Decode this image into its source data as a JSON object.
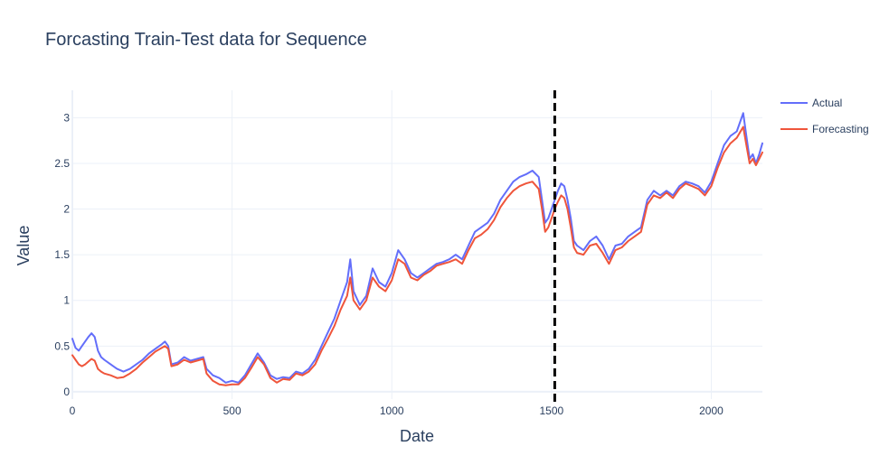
{
  "chart_data": {
    "type": "line",
    "title": "Forcasting Train-Test data for Sequence",
    "xlabel": "Date",
    "ylabel": "Value",
    "xlim": [
      0,
      2160
    ],
    "ylim": [
      -0.08,
      3.3
    ],
    "x_ticks": [
      0,
      500,
      1000,
      1500,
      2000
    ],
    "x_tick_labels": [
      "0",
      "500",
      "1000",
      "1500",
      "2000"
    ],
    "y_ticks": [
      0,
      0.5,
      1,
      1.5,
      2,
      2.5,
      3
    ],
    "y_tick_labels": [
      "0",
      "0.5",
      "1",
      "1.5",
      "2",
      "2.5",
      "3"
    ],
    "grid": true,
    "legend_position": "top-right",
    "split_line": {
      "x": 1510,
      "style": "dashed",
      "color": "#000000"
    },
    "series": [
      {
        "name": "Actual",
        "color": "#636efa",
        "x": [
          0,
          10,
          20,
          30,
          40,
          50,
          60,
          70,
          80,
          90,
          100,
          120,
          140,
          160,
          180,
          200,
          220,
          240,
          260,
          280,
          290,
          300,
          310,
          330,
          350,
          370,
          390,
          410,
          420,
          440,
          460,
          480,
          500,
          520,
          540,
          560,
          580,
          600,
          620,
          640,
          660,
          680,
          700,
          720,
          740,
          760,
          780,
          800,
          820,
          840,
          860,
          870,
          880,
          900,
          920,
          940,
          960,
          980,
          1000,
          1020,
          1040,
          1060,
          1080,
          1100,
          1120,
          1140,
          1160,
          1180,
          1200,
          1220,
          1240,
          1260,
          1280,
          1300,
          1320,
          1340,
          1360,
          1380,
          1400,
          1420,
          1440,
          1460,
          1470,
          1480,
          1490,
          1500,
          1510,
          1520,
          1530,
          1540,
          1550,
          1560,
          1570,
          1580,
          1600,
          1620,
          1640,
          1660,
          1680,
          1700,
          1720,
          1740,
          1760,
          1780,
          1800,
          1820,
          1840,
          1860,
          1880,
          1900,
          1920,
          1940,
          1960,
          1980,
          2000,
          2020,
          2040,
          2060,
          2080,
          2100,
          2110,
          2120,
          2130,
          2140,
          2150,
          2160
        ],
        "y": [
          0.58,
          0.48,
          0.45,
          0.5,
          0.55,
          0.6,
          0.64,
          0.6,
          0.45,
          0.38,
          0.35,
          0.3,
          0.25,
          0.22,
          0.25,
          0.3,
          0.35,
          0.42,
          0.47,
          0.52,
          0.55,
          0.5,
          0.3,
          0.32,
          0.38,
          0.34,
          0.36,
          0.38,
          0.25,
          0.18,
          0.15,
          0.1,
          0.12,
          0.1,
          0.18,
          0.3,
          0.42,
          0.32,
          0.18,
          0.14,
          0.16,
          0.15,
          0.22,
          0.2,
          0.25,
          0.35,
          0.5,
          0.65,
          0.8,
          1.0,
          1.2,
          1.45,
          1.1,
          0.95,
          1.05,
          1.35,
          1.2,
          1.15,
          1.3,
          1.55,
          1.45,
          1.3,
          1.25,
          1.3,
          1.35,
          1.4,
          1.42,
          1.45,
          1.5,
          1.45,
          1.6,
          1.75,
          1.8,
          1.85,
          1.95,
          2.1,
          2.2,
          2.3,
          2.35,
          2.38,
          2.42,
          2.35,
          2.1,
          1.85,
          1.9,
          2.0,
          2.1,
          2.2,
          2.28,
          2.25,
          2.1,
          1.9,
          1.65,
          1.6,
          1.55,
          1.65,
          1.7,
          1.6,
          1.45,
          1.6,
          1.62,
          1.7,
          1.75,
          1.8,
          2.1,
          2.2,
          2.15,
          2.2,
          2.15,
          2.25,
          2.3,
          2.28,
          2.25,
          2.18,
          2.3,
          2.5,
          2.7,
          2.8,
          2.85,
          3.05,
          2.8,
          2.55,
          2.6,
          2.5,
          2.6,
          2.72
        ]
      },
      {
        "name": "Forecasting",
        "color": "#ef553b",
        "x": [
          0,
          10,
          20,
          30,
          40,
          50,
          60,
          70,
          80,
          90,
          100,
          120,
          140,
          160,
          180,
          200,
          220,
          240,
          260,
          280,
          290,
          300,
          310,
          330,
          350,
          370,
          390,
          410,
          420,
          440,
          460,
          480,
          500,
          520,
          540,
          560,
          580,
          600,
          620,
          640,
          660,
          680,
          700,
          720,
          740,
          760,
          780,
          800,
          820,
          840,
          860,
          870,
          880,
          900,
          920,
          940,
          960,
          980,
          1000,
          1020,
          1040,
          1060,
          1080,
          1100,
          1120,
          1140,
          1160,
          1180,
          1200,
          1220,
          1240,
          1260,
          1280,
          1300,
          1320,
          1340,
          1360,
          1380,
          1400,
          1420,
          1440,
          1460,
          1470,
          1480,
          1490,
          1500,
          1510,
          1520,
          1530,
          1540,
          1550,
          1560,
          1570,
          1580,
          1600,
          1620,
          1640,
          1660,
          1680,
          1700,
          1720,
          1740,
          1760,
          1780,
          1800,
          1820,
          1840,
          1860,
          1880,
          1900,
          1920,
          1940,
          1960,
          1980,
          2000,
          2020,
          2040,
          2060,
          2080,
          2100,
          2110,
          2120,
          2130,
          2140,
          2150,
          2160
        ],
        "y": [
          0.4,
          0.35,
          0.3,
          0.28,
          0.3,
          0.33,
          0.36,
          0.34,
          0.25,
          0.22,
          0.2,
          0.18,
          0.15,
          0.16,
          0.2,
          0.25,
          0.32,
          0.38,
          0.44,
          0.48,
          0.5,
          0.47,
          0.28,
          0.3,
          0.35,
          0.32,
          0.34,
          0.36,
          0.2,
          0.12,
          0.08,
          0.07,
          0.08,
          0.08,
          0.15,
          0.26,
          0.38,
          0.3,
          0.15,
          0.1,
          0.14,
          0.13,
          0.2,
          0.18,
          0.22,
          0.3,
          0.45,
          0.58,
          0.72,
          0.9,
          1.05,
          1.25,
          1.0,
          0.9,
          1.0,
          1.25,
          1.15,
          1.1,
          1.22,
          1.45,
          1.4,
          1.25,
          1.22,
          1.28,
          1.32,
          1.38,
          1.4,
          1.42,
          1.45,
          1.4,
          1.55,
          1.68,
          1.72,
          1.78,
          1.88,
          2.02,
          2.12,
          2.2,
          2.25,
          2.28,
          2.3,
          2.22,
          2.0,
          1.75,
          1.8,
          1.9,
          2.0,
          2.08,
          2.15,
          2.12,
          2.0,
          1.8,
          1.58,
          1.52,
          1.5,
          1.6,
          1.62,
          1.52,
          1.4,
          1.55,
          1.58,
          1.65,
          1.7,
          1.75,
          2.05,
          2.15,
          2.12,
          2.18,
          2.12,
          2.22,
          2.28,
          2.25,
          2.22,
          2.15,
          2.25,
          2.45,
          2.62,
          2.72,
          2.78,
          2.9,
          2.7,
          2.5,
          2.55,
          2.48,
          2.55,
          2.62
        ]
      }
    ]
  }
}
